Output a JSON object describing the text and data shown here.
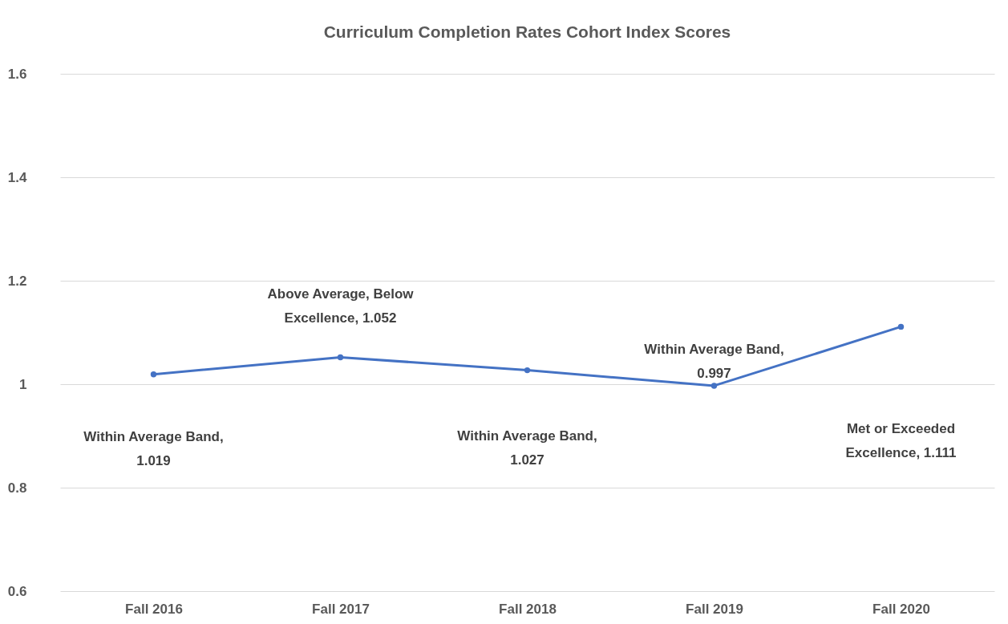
{
  "chart_data": {
    "type": "line",
    "title": "Curriculum Completion Rates Cohort Index Scores",
    "categories": [
      "Fall 2016",
      "Fall 2017",
      "Fall 2018",
      "Fall 2019",
      "Fall 2020"
    ],
    "series": [
      {
        "color": "#4472c4",
        "values": [
          1.019,
          1.052,
          1.027,
          0.997,
          1.111
        ]
      }
    ],
    "value_labels": [
      "Within Average Band, 1.019",
      "Above Average, Below Excellence, 1.052",
      "Within Average Band, 1.027",
      "Within Average Band, 0.997",
      "Met or Exceeded Excellence, 1.111"
    ],
    "ylim": [
      0.6,
      1.6
    ],
    "yticks": [
      0.6,
      0.8,
      1,
      1.2,
      1.4,
      1.6
    ],
    "grid": "y",
    "marker": "circle",
    "line_style": "solid"
  }
}
